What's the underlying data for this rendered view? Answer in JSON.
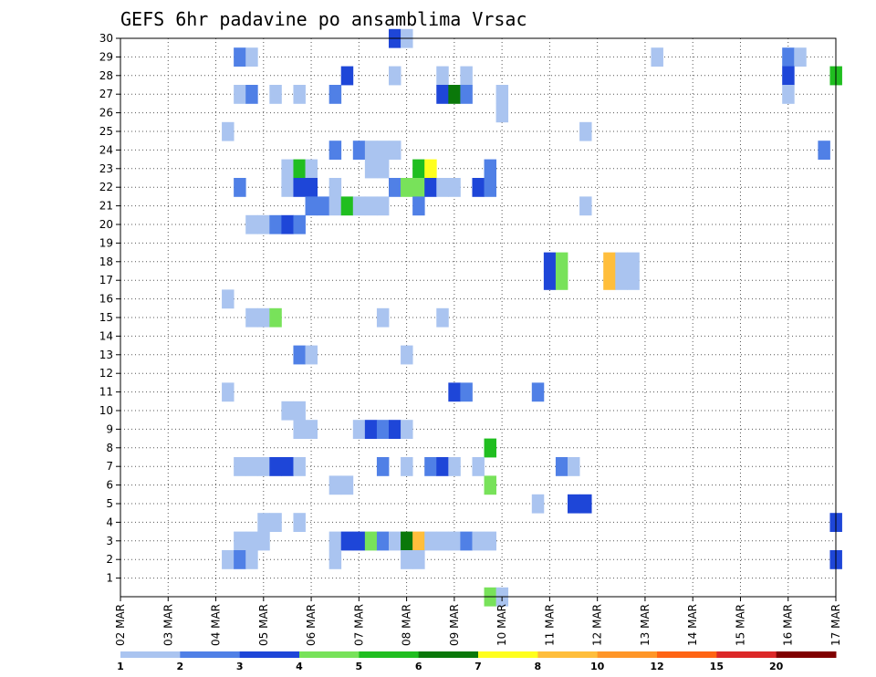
{
  "chart_data": {
    "type": "heatmap",
    "title": "GEFS 6hr padavine po ansamblima Vrsac",
    "xlabel": "",
    "ylabel": "",
    "x_ticks": [
      "02 MAR",
      "03 MAR",
      "04 MAR",
      "05 MAR",
      "06 MAR",
      "07 MAR",
      "08 MAR",
      "09 MAR",
      "10 MAR",
      "11 MAR",
      "12 MAR",
      "13 MAR",
      "14 MAR",
      "15 MAR",
      "16 MAR",
      "17 MAR"
    ],
    "y_ticks": [
      "1",
      "2",
      "3",
      "4",
      "5",
      "6",
      "7",
      "8",
      "9",
      "10",
      "11",
      "12",
      "13",
      "14",
      "15",
      "16",
      "17",
      "18",
      "19",
      "20",
      "21",
      "22",
      "23",
      "24",
      "25",
      "26",
      "27",
      "28",
      "29",
      "30"
    ],
    "xlim": [
      "02 MAR 00Z",
      "17 MAR 00Z"
    ],
    "ylim": [
      0,
      30
    ],
    "grid": true,
    "legend": {
      "placement": "bottom",
      "labels": [
        "1",
        "2",
        "3",
        "4",
        "5",
        "6",
        "7",
        "8",
        "10",
        "12",
        "15",
        "20"
      ],
      "colors": [
        "#aac4f0",
        "#5080e6",
        "#1e46d8",
        "#78e25a",
        "#20be20",
        "#0a780a",
        "#ffff1e",
        "#ffbe3c",
        "#ff9628",
        "#ff6414",
        "#dc2828",
        "#800000"
      ]
    },
    "cell_classes": [
      "1-2",
      "2-3",
      "3-4",
      "4-5",
      "5-6",
      "6-7",
      "7-8",
      "8-10",
      "10-12",
      "12-15",
      "15-20",
      ">20"
    ],
    "cells_note": "each cell: [member, time index in 6-hourly steps from 02 MAR 00Z, color class index]",
    "cells": [
      [
        30,
        23,
        2
      ],
      [
        30,
        24,
        0
      ],
      [
        29,
        10,
        1
      ],
      [
        29,
        11,
        0
      ],
      [
        29,
        45,
        0
      ],
      [
        29,
        56,
        1
      ],
      [
        29,
        57,
        0
      ],
      [
        28,
        19,
        2
      ],
      [
        28,
        23,
        0
      ],
      [
        28,
        27,
        0
      ],
      [
        28,
        29,
        0
      ],
      [
        28,
        56,
        2
      ],
      [
        28,
        60,
        4
      ],
      [
        27,
        10,
        0
      ],
      [
        27,
        11,
        1
      ],
      [
        27,
        13,
        0
      ],
      [
        27,
        15,
        0
      ],
      [
        27,
        18,
        1
      ],
      [
        27,
        27,
        2
      ],
      [
        27,
        28,
        5
      ],
      [
        27,
        29,
        1
      ],
      [
        27,
        32,
        0
      ],
      [
        27,
        56,
        0
      ],
      [
        26,
        32,
        0
      ],
      [
        25,
        9,
        0
      ],
      [
        25,
        39,
        0
      ],
      [
        24,
        18,
        1
      ],
      [
        24,
        20,
        1
      ],
      [
        24,
        21,
        0
      ],
      [
        24,
        22,
        0
      ],
      [
        24,
        23,
        0
      ],
      [
        24,
        59,
        1
      ],
      [
        23,
        14,
        0
      ],
      [
        23,
        15,
        4
      ],
      [
        23,
        16,
        0
      ],
      [
        23,
        21,
        0
      ],
      [
        23,
        22,
        0
      ],
      [
        23,
        25,
        4
      ],
      [
        23,
        26,
        6
      ],
      [
        23,
        31,
        1
      ],
      [
        22,
        10,
        1
      ],
      [
        22,
        14,
        0
      ],
      [
        22,
        15,
        2
      ],
      [
        22,
        16,
        2
      ],
      [
        22,
        18,
        0
      ],
      [
        22,
        23,
        1
      ],
      [
        22,
        24,
        3
      ],
      [
        22,
        25,
        3
      ],
      [
        22,
        26,
        2
      ],
      [
        22,
        27,
        0
      ],
      [
        22,
        28,
        0
      ],
      [
        22,
        30,
        2
      ],
      [
        22,
        31,
        1
      ],
      [
        21,
        16,
        1
      ],
      [
        21,
        17,
        1
      ],
      [
        21,
        18,
        0
      ],
      [
        21,
        19,
        4
      ],
      [
        21,
        20,
        0
      ],
      [
        21,
        21,
        0
      ],
      [
        21,
        22,
        0
      ],
      [
        21,
        25,
        1
      ],
      [
        21,
        39,
        0
      ],
      [
        20,
        11,
        0
      ],
      [
        20,
        12,
        0
      ],
      [
        20,
        13,
        1
      ],
      [
        20,
        14,
        2
      ],
      [
        20,
        15,
        1
      ],
      [
        18,
        36,
        2
      ],
      [
        18,
        37,
        3
      ],
      [
        18,
        41,
        7
      ],
      [
        18,
        42,
        0
      ],
      [
        18,
        43,
        0
      ],
      [
        17,
        36,
        2
      ],
      [
        17,
        37,
        3
      ],
      [
        17,
        41,
        7
      ],
      [
        17,
        42,
        0
      ],
      [
        17,
        43,
        0
      ],
      [
        16,
        9,
        0
      ],
      [
        15,
        11,
        0
      ],
      [
        15,
        12,
        0
      ],
      [
        15,
        13,
        3
      ],
      [
        15,
        22,
        0
      ],
      [
        15,
        27,
        0
      ],
      [
        13,
        15,
        1
      ],
      [
        13,
        16,
        0
      ],
      [
        13,
        24,
        0
      ],
      [
        11,
        9,
        0
      ],
      [
        11,
        28,
        2
      ],
      [
        11,
        29,
        1
      ],
      [
        11,
        35,
        1
      ],
      [
        10,
        14,
        0
      ],
      [
        10,
        15,
        0
      ],
      [
        9,
        15,
        0
      ],
      [
        9,
        16,
        0
      ],
      [
        9,
        20,
        0
      ],
      [
        9,
        21,
        2
      ],
      [
        9,
        22,
        1
      ],
      [
        9,
        23,
        2
      ],
      [
        9,
        24,
        0
      ],
      [
        8,
        31,
        4
      ],
      [
        7,
        10,
        0
      ],
      [
        7,
        11,
        0
      ],
      [
        7,
        12,
        0
      ],
      [
        7,
        13,
        2
      ],
      [
        7,
        14,
        2
      ],
      [
        7,
        15,
        0
      ],
      [
        7,
        22,
        1
      ],
      [
        7,
        24,
        0
      ],
      [
        7,
        26,
        1
      ],
      [
        7,
        27,
        2
      ],
      [
        7,
        28,
        0
      ],
      [
        7,
        30,
        0
      ],
      [
        7,
        37,
        1
      ],
      [
        7,
        38,
        0
      ],
      [
        6,
        18,
        0
      ],
      [
        6,
        19,
        0
      ],
      [
        6,
        31,
        3
      ],
      [
        5,
        35,
        0
      ],
      [
        5,
        38,
        2
      ],
      [
        5,
        39,
        2
      ],
      [
        4,
        12,
        0
      ],
      [
        4,
        13,
        0
      ],
      [
        4,
        15,
        0
      ],
      [
        4,
        60,
        2
      ],
      [
        3,
        10,
        0
      ],
      [
        3,
        11,
        0
      ],
      [
        3,
        12,
        0
      ],
      [
        3,
        18,
        0
      ],
      [
        3,
        19,
        2
      ],
      [
        3,
        20,
        2
      ],
      [
        3,
        21,
        3
      ],
      [
        3,
        22,
        1
      ],
      [
        3,
        23,
        0
      ],
      [
        3,
        24,
        5
      ],
      [
        3,
        25,
        7
      ],
      [
        3,
        26,
        0
      ],
      [
        3,
        27,
        0
      ],
      [
        3,
        28,
        0
      ],
      [
        3,
        29,
        1
      ],
      [
        3,
        30,
        0
      ],
      [
        3,
        31,
        0
      ],
      [
        2,
        9,
        0
      ],
      [
        2,
        10,
        1
      ],
      [
        2,
        11,
        0
      ],
      [
        2,
        18,
        0
      ],
      [
        2,
        24,
        0
      ],
      [
        2,
        25,
        0
      ],
      [
        2,
        60,
        2
      ],
      [
        0,
        31,
        3
      ],
      [
        0,
        32,
        0
      ]
    ]
  }
}
